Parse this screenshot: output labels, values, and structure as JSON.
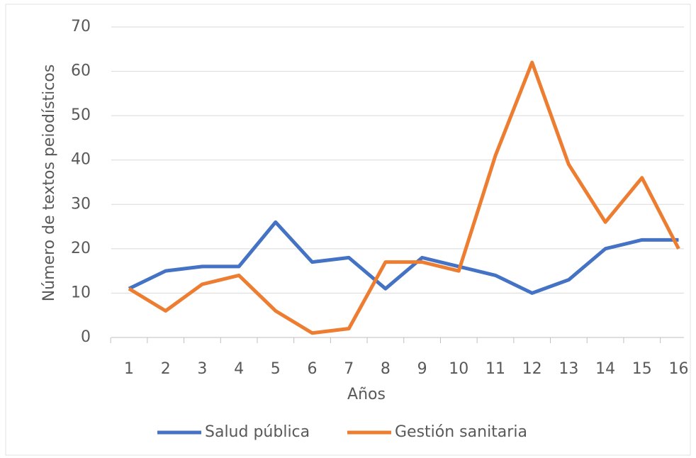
{
  "chart_data": {
    "type": "line",
    "xlabel": "Años",
    "ylabel": "Número de textos peiodísticos",
    "categories": [
      "1",
      "2",
      "3",
      "4",
      "5",
      "6",
      "7",
      "8",
      "9",
      "10",
      "11",
      "12",
      "13",
      "14",
      "15",
      "16"
    ],
    "series": [
      {
        "name": "Salud pública",
        "color": "#4472c4",
        "values": [
          11,
          15,
          16,
          16,
          26,
          17,
          18,
          11,
          18,
          16,
          14,
          10,
          13,
          20,
          22,
          22
        ]
      },
      {
        "name": "Gestión sanitaria",
        "color": "#ed7d31",
        "values": [
          11,
          6,
          12,
          14,
          6,
          1,
          2,
          17,
          17,
          15,
          41,
          62,
          39,
          26,
          36,
          20
        ]
      }
    ],
    "ylim": [
      0,
      70
    ],
    "yticks": [
      0,
      10,
      20,
      30,
      40,
      50,
      60,
      70
    ],
    "grid": true,
    "legend": "bottom"
  }
}
